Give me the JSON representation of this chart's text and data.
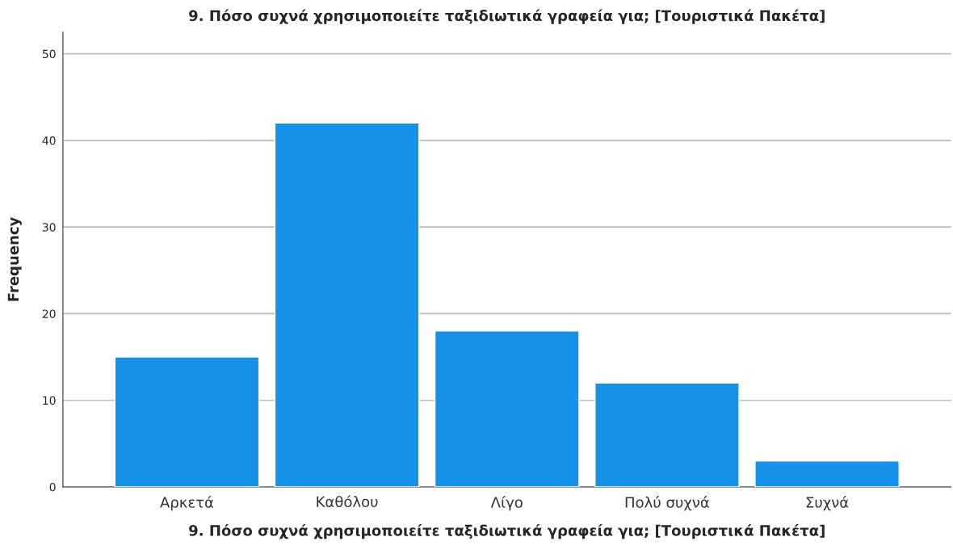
{
  "chart_data": {
    "type": "bar",
    "title": "9. Πόσο συχνά χρησιμοποιείτε ταξιδιωτικά γραφεία για; [Τουριστικά Πακέτα]",
    "xlabel": "9. Πόσο συχνά χρησιμοποιείτε ταξιδιωτικά γραφεία για; [Τουριστικά Πακέτα]",
    "ylabel": "Frequency",
    "categories": [
      "Αρκετά",
      "Καθόλου",
      "Λίγο",
      "Πολύ συχνά",
      "Συχνά"
    ],
    "values": [
      15,
      42,
      18,
      12,
      3
    ],
    "color": "#1591e8",
    "ylim": [
      0,
      52.5
    ],
    "yticks": [
      0,
      10,
      20,
      30,
      40,
      50
    ],
    "grid": "y",
    "legend": false
  }
}
